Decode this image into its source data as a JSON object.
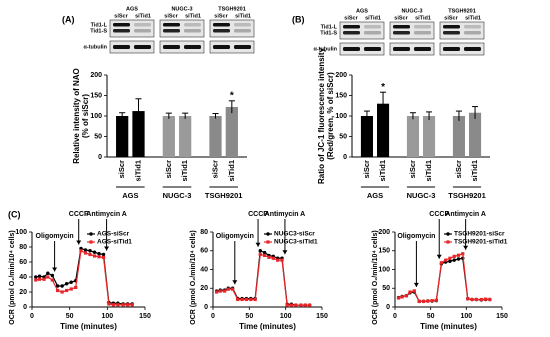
{
  "chart_data": [
    {
      "type": "bar",
      "panel_label": "(A)",
      "ylabel": [
        "Relative intensity of NAO",
        "(% of siScr)"
      ],
      "ylim": [
        0,
        200
      ],
      "yticks": [
        0,
        50,
        100,
        150,
        200
      ],
      "groups": [
        {
          "name": "AGS",
          "color": "#000000",
          "categories": [
            "siScr",
            "siTid1"
          ],
          "values": [
            100,
            112
          ],
          "errors": [
            8,
            30
          ],
          "bar_labels": [
            null,
            null
          ]
        },
        {
          "name": "NUGC-3",
          "color": "#9a9a9a",
          "categories": [
            "siScr",
            "siTid1"
          ],
          "values": [
            100,
            100
          ],
          "errors": [
            7,
            7
          ],
          "bar_labels": [
            null,
            null
          ]
        },
        {
          "name": "TSGH9201",
          "color": "#8a8a8a",
          "categories": [
            "siScr",
            "siTid1"
          ],
          "values": [
            100,
            122
          ],
          "errors": [
            6,
            15
          ],
          "bar_labels": [
            null,
            "*"
          ]
        }
      ]
    },
    {
      "type": "bar",
      "panel_label": "(B)",
      "ylabel": [
        "Ratio of JC-1 fluorescence intensity",
        "(Red/green, % of siScr)"
      ],
      "ylim": [
        0,
        200
      ],
      "yticks": [
        0,
        50,
        100,
        150,
        200
      ],
      "groups": [
        {
          "name": "AGS",
          "color": "#000000",
          "categories": [
            "siScr",
            "siTid1"
          ],
          "values": [
            100,
            130
          ],
          "errors": [
            12,
            28
          ],
          "bar_labels": [
            null,
            "*"
          ]
        },
        {
          "name": "NUGC-3",
          "color": "#9a9a9a",
          "categories": [
            "siScr",
            "siTid1"
          ],
          "values": [
            100,
            100
          ],
          "errors": [
            8,
            10
          ],
          "bar_labels": [
            null,
            null
          ]
        },
        {
          "name": "TSGH9201",
          "color": "#8a8a8a",
          "categories": [
            "siScr",
            "siTid1"
          ],
          "values": [
            100,
            108
          ],
          "errors": [
            12,
            15
          ],
          "bar_labels": [
            null,
            null
          ]
        }
      ]
    },
    {
      "type": "line",
      "panel_label": "(C)",
      "xlabel": "Time (minutes)",
      "ylabel": "OCR (pmol O₂/min/10⁴ cells)",
      "xlim": [
        0,
        150
      ],
      "xticks": [
        0,
        50,
        100,
        150
      ],
      "ylim": [
        0,
        100
      ],
      "yticks": [
        0,
        20,
        40,
        60,
        80,
        100
      ],
      "legend": "upper right",
      "x": [
        5,
        10,
        16,
        21,
        27,
        34,
        40,
        46,
        52,
        58,
        65,
        71,
        77,
        83,
        89,
        95,
        102,
        108,
        114,
        121,
        127,
        133
      ],
      "annotations": [
        {
          "text": "Oligomycin",
          "x": 30
        },
        {
          "text": "CCCP",
          "x": 62
        },
        {
          "text": "Antimycin A",
          "x": 99
        }
      ],
      "series": [
        {
          "name": "AGS-siScr",
          "color": "#000000",
          "marker": "circle",
          "values": [
            40,
            41,
            40,
            45,
            42,
            28,
            28,
            31,
            33,
            35,
            78,
            76,
            75,
            73,
            71,
            70,
            6,
            5,
            5,
            4,
            4,
            4
          ]
        },
        {
          "name": "AGS-siTid1",
          "color": "#e8262a",
          "marker": "square",
          "values": [
            36,
            37,
            37,
            40,
            36,
            22,
            20,
            22,
            24,
            26,
            75,
            72,
            70,
            68,
            67,
            66,
            4,
            3,
            3,
            3,
            3,
            3
          ]
        }
      ]
    },
    {
      "type": "line",
      "xlabel": "Time (minutes)",
      "ylabel": "OCR (pmol O₂/min/10⁴ cells)",
      "xlim": [
        0,
        150
      ],
      "xticks": [
        0,
        50,
        100,
        150
      ],
      "ylim": [
        0,
        80
      ],
      "yticks": [
        0,
        20,
        40,
        60,
        80
      ],
      "legend": "upper right",
      "x": [
        5,
        10,
        16,
        21,
        27,
        34,
        40,
        46,
        52,
        58,
        65,
        71,
        77,
        83,
        89,
        95,
        102,
        108,
        114,
        121,
        127,
        133
      ],
      "annotations": [
        {
          "text": "Oligomycin",
          "x": 30
        },
        {
          "text": "CCCP",
          "x": 62
        },
        {
          "text": "Antimycin A",
          "x": 99
        }
      ],
      "series": [
        {
          "name": "NUGC3-siScr",
          "color": "#000000",
          "marker": "circle",
          "values": [
            17,
            18,
            18,
            20,
            20,
            9,
            9,
            9,
            9,
            9,
            60,
            58,
            55,
            54,
            52,
            52,
            3,
            3,
            2,
            2,
            2,
            2
          ]
        },
        {
          "name": "NUGC3-siTid1",
          "color": "#e8262a",
          "marker": "square",
          "values": [
            16,
            17,
            17,
            19,
            19,
            8,
            8,
            8,
            8,
            8,
            56,
            55,
            53,
            52,
            50,
            50,
            2,
            2,
            2,
            2,
            2,
            2
          ]
        }
      ]
    },
    {
      "type": "line",
      "xlabel": "Time (minutes)",
      "ylabel": "OCR (pmol O₂/min/10⁴ cells)",
      "xlim": [
        0,
        150
      ],
      "xticks": [
        0,
        50,
        100,
        150
      ],
      "ylim": [
        0,
        200
      ],
      "yticks": [
        0,
        50,
        100,
        150,
        200
      ],
      "legend": "upper right",
      "x": [
        5,
        10,
        16,
        21,
        27,
        34,
        40,
        46,
        52,
        58,
        65,
        71,
        77,
        83,
        89,
        95,
        102,
        108,
        114,
        121,
        127,
        133
      ],
      "annotations": [
        {
          "text": "Oligomycin",
          "x": 30
        },
        {
          "text": "CCCP",
          "x": 62
        },
        {
          "text": "Antimycin A",
          "x": 99
        }
      ],
      "series": [
        {
          "name": "TSGH9201-siScr",
          "color": "#000000",
          "marker": "circle",
          "values": [
            25,
            28,
            30,
            38,
            40,
            15,
            15,
            16,
            16,
            17,
            115,
            120,
            122,
            125,
            128,
            130,
            22,
            20,
            20,
            19,
            20,
            20
          ]
        },
        {
          "name": "TSGH9201-siTid1",
          "color": "#e8262a",
          "marker": "square",
          "values": [
            24,
            27,
            30,
            40,
            43,
            15,
            15,
            16,
            17,
            18,
            118,
            125,
            130,
            135,
            138,
            142,
            22,
            20,
            20,
            20,
            21,
            20
          ]
        }
      ]
    }
  ],
  "blots": [
    {
      "cell_lines": [
        "AGS",
        "NUGC-3",
        "TSGH9201"
      ],
      "lanes": [
        "siScr",
        "siTid1"
      ],
      "rows": [
        "Tid1-L",
        "Tid1-S",
        "α-tubulin"
      ]
    },
    {
      "cell_lines": [
        "AGS",
        "NUGC-3",
        "TSGH9201"
      ],
      "lanes": [
        "siScr",
        "siTid1"
      ],
      "rows": [
        "Tid1-L",
        "Tid1-S",
        "α-tubulin"
      ]
    }
  ]
}
